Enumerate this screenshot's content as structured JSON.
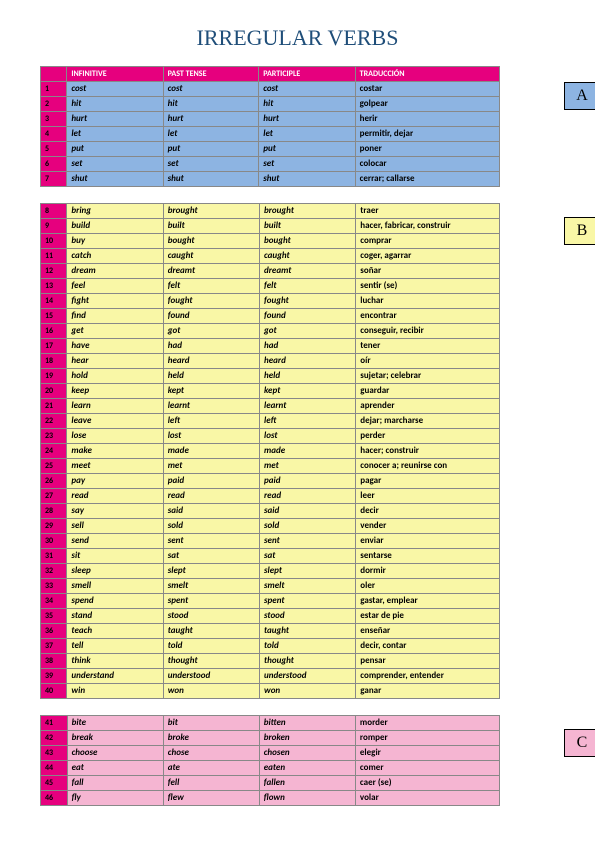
{
  "title": "IRREGULAR VERBS",
  "headers": {
    "num": "",
    "inf": "INFINITIVE",
    "past": "PAST TENSE",
    "part": "PARTICIPLE",
    "trans": "TRADUCCIÓN"
  },
  "badges": {
    "a": "A",
    "b": "B",
    "c": "C"
  },
  "colors": {
    "header_bg": "#e6007e",
    "group_a": "#8db4e2",
    "group_b": "#f9f7a6",
    "group_c": "#f5b5d2",
    "title_color": "#1f4e79"
  },
  "groupA": [
    {
      "n": "1",
      "inf": "cost",
      "past": "cost",
      "part": "cost",
      "trans": "costar"
    },
    {
      "n": "2",
      "inf": "hit",
      "past": "hit",
      "part": "hit",
      "trans": "golpear"
    },
    {
      "n": "3",
      "inf": "hurt",
      "past": "hurt",
      "part": "hurt",
      "trans": "herir"
    },
    {
      "n": "4",
      "inf": "let",
      "past": "let",
      "part": "let",
      "trans": "permitir, dejar"
    },
    {
      "n": "5",
      "inf": "put",
      "past": "put",
      "part": "put",
      "trans": "poner"
    },
    {
      "n": "6",
      "inf": "set",
      "past": "set",
      "part": "set",
      "trans": "colocar"
    },
    {
      "n": "7",
      "inf": "shut",
      "past": "shut",
      "part": "shut",
      "trans": "cerrar; callarse"
    }
  ],
  "groupB": [
    {
      "n": "8",
      "inf": "bring",
      "past": "brought",
      "part": "brought",
      "trans": "traer"
    },
    {
      "n": "9",
      "inf": "build",
      "past": "built",
      "part": "built",
      "trans": "hacer, fabricar, construir"
    },
    {
      "n": "10",
      "inf": "buy",
      "past": "bought",
      "part": "bought",
      "trans": "comprar"
    },
    {
      "n": "11",
      "inf": "catch",
      "past": "caught",
      "part": "caught",
      "trans": "coger, agarrar"
    },
    {
      "n": "12",
      "inf": "dream",
      "past": "dreamt",
      "part": "dreamt",
      "trans": "soñar"
    },
    {
      "n": "13",
      "inf": "feel",
      "past": "felt",
      "part": "felt",
      "trans": "sentir (se)"
    },
    {
      "n": "14",
      "inf": "fight",
      "past": "fought",
      "part": "fought",
      "trans": "luchar"
    },
    {
      "n": "15",
      "inf": "find",
      "past": "found",
      "part": "found",
      "trans": "encontrar"
    },
    {
      "n": "16",
      "inf": "get",
      "past": "got",
      "part": "got",
      "trans": "conseguir, recibir"
    },
    {
      "n": "17",
      "inf": "have",
      "past": "had",
      "part": "had",
      "trans": "tener"
    },
    {
      "n": "18",
      "inf": "hear",
      "past": "heard",
      "part": "heard",
      "trans": "oír"
    },
    {
      "n": "19",
      "inf": "hold",
      "past": "held",
      "part": "held",
      "trans": "sujetar; celebrar"
    },
    {
      "n": "20",
      "inf": "keep",
      "past": "kept",
      "part": "kept",
      "trans": "guardar"
    },
    {
      "n": "21",
      "inf": "learn",
      "past": "learnt",
      "part": "learnt",
      "trans": "aprender"
    },
    {
      "n": "22",
      "inf": "leave",
      "past": "left",
      "part": "left",
      "trans": "dejar; marcharse"
    },
    {
      "n": "23",
      "inf": "lose",
      "past": "lost",
      "part": "lost",
      "trans": "perder"
    },
    {
      "n": "24",
      "inf": "make",
      "past": "made",
      "part": "made",
      "trans": "hacer; construir"
    },
    {
      "n": "25",
      "inf": "meet",
      "past": "met",
      "part": "met",
      "trans": "conocer a; reunirse con"
    },
    {
      "n": "26",
      "inf": "pay",
      "past": "paid",
      "part": "paid",
      "trans": "pagar"
    },
    {
      "n": "27",
      "inf": "read",
      "past": "read",
      "part": "read",
      "trans": "leer"
    },
    {
      "n": "28",
      "inf": "say",
      "past": "said",
      "part": "said",
      "trans": "decir"
    },
    {
      "n": "29",
      "inf": "sell",
      "past": "sold",
      "part": "sold",
      "trans": "vender"
    },
    {
      "n": "30",
      "inf": "send",
      "past": "sent",
      "part": "sent",
      "trans": "enviar"
    },
    {
      "n": "31",
      "inf": "sit",
      "past": "sat",
      "part": "sat",
      "trans": "sentarse"
    },
    {
      "n": "32",
      "inf": "sleep",
      "past": "slept",
      "part": "slept",
      "trans": "dormir"
    },
    {
      "n": "33",
      "inf": "smell",
      "past": "smelt",
      "part": "smelt",
      "trans": "oler"
    },
    {
      "n": "34",
      "inf": "spend",
      "past": "spent",
      "part": "spent",
      "trans": "gastar, emplear"
    },
    {
      "n": "35",
      "inf": "stand",
      "past": "stood",
      "part": "stood",
      "trans": "estar de pie"
    },
    {
      "n": "36",
      "inf": "teach",
      "past": "taught",
      "part": "taught",
      "trans": "enseñar"
    },
    {
      "n": "37",
      "inf": "tell",
      "past": "told",
      "part": "told",
      "trans": "decir, contar"
    },
    {
      "n": "38",
      "inf": "think",
      "past": "thought",
      "part": "thought",
      "trans": "pensar"
    },
    {
      "n": "39",
      "inf": "understand",
      "past": "understood",
      "part": "understood",
      "trans": "comprender, entender"
    },
    {
      "n": "40",
      "inf": "win",
      "past": "won",
      "part": "won",
      "trans": "ganar"
    }
  ],
  "groupC": [
    {
      "n": "41",
      "inf": "bite",
      "past": "bit",
      "part": "bitten",
      "trans": "morder"
    },
    {
      "n": "42",
      "inf": "break",
      "past": "broke",
      "part": "broken",
      "trans": "romper"
    },
    {
      "n": "43",
      "inf": "choose",
      "past": "chose",
      "part": "chosen",
      "trans": "elegir"
    },
    {
      "n": "44",
      "inf": "eat",
      "past": "ate",
      "part": "eaten",
      "trans": "comer"
    },
    {
      "n": "45",
      "inf": "fall",
      "past": "fell",
      "part": "fallen",
      "trans": "caer (se)"
    },
    {
      "n": "46",
      "inf": "fly",
      "past": "flew",
      "part": "flown",
      "trans": "volar"
    }
  ]
}
